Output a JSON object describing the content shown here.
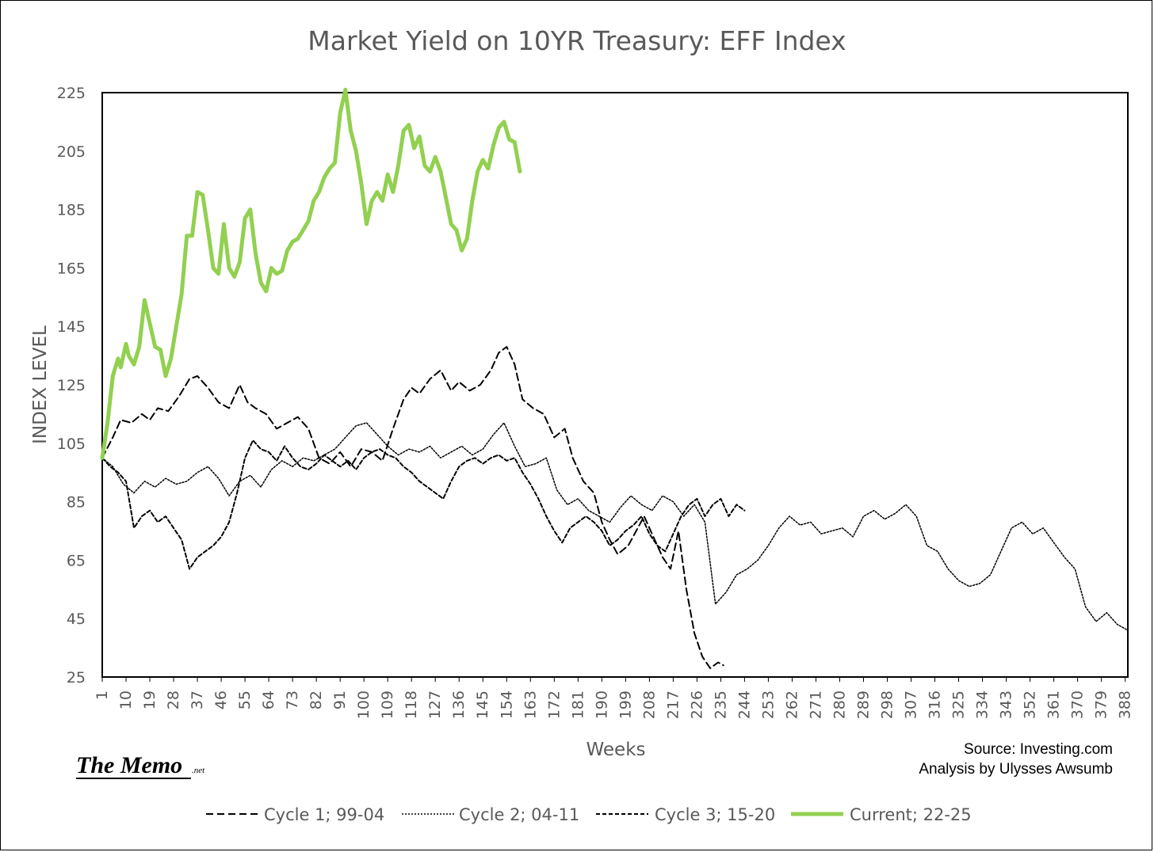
{
  "chart_data": {
    "type": "line",
    "title": "Market Yield on 10YR Treasury: EFF Index",
    "xlabel": "Weeks",
    "ylabel": "INDEX LEVEL",
    "ylim": [
      25,
      225
    ],
    "yticks": [
      25,
      45,
      65,
      85,
      105,
      125,
      145,
      165,
      185,
      205,
      225
    ],
    "xlim": [
      1,
      389
    ],
    "xticks": [
      1,
      10,
      19,
      28,
      37,
      46,
      55,
      64,
      73,
      82,
      91,
      100,
      109,
      118,
      127,
      136,
      145,
      154,
      163,
      172,
      181,
      190,
      199,
      208,
      217,
      226,
      235,
      244,
      253,
      262,
      271,
      280,
      289,
      298,
      307,
      316,
      325,
      334,
      343,
      352,
      361,
      370,
      379,
      388
    ],
    "grid": false,
    "legend_position": "bottom",
    "series": [
      {
        "name": "Cycle 1; 99-04",
        "style": "dash",
        "color": "#000000",
        "x": [
          1,
          5,
          8,
          12,
          16,
          19,
          22,
          26,
          30,
          34,
          37,
          41,
          45,
          49,
          53,
          56,
          59,
          63,
          67,
          71,
          75,
          79,
          83,
          87,
          91,
          95,
          99,
          103,
          107,
          111,
          115,
          118,
          121,
          125,
          129,
          133,
          136,
          140,
          144,
          148,
          151,
          154,
          157,
          160,
          164,
          168,
          172,
          176,
          179,
          183,
          187,
          190,
          193,
          196,
          200,
          203,
          206,
          210,
          213,
          216,
          219,
          222,
          225,
          228,
          231,
          234,
          236
        ],
        "values": [
          100,
          107,
          113,
          112,
          115,
          113,
          117,
          116,
          121,
          127,
          128,
          124,
          119,
          117,
          125,
          119,
          117,
          115,
          110,
          112,
          114,
          110,
          100,
          98,
          102,
          97,
          103,
          102,
          99,
          110,
          120,
          124,
          122,
          127,
          130,
          123,
          126,
          123,
          125,
          130,
          136,
          138,
          132,
          120,
          117,
          115,
          107,
          110,
          100,
          92,
          88,
          78,
          72,
          67,
          70,
          75,
          80,
          72,
          66,
          62,
          75,
          55,
          40,
          32,
          28,
          30,
          29
        ]
      },
      {
        "name": "Cycle 2; 04-11",
        "style": "dot",
        "color": "#000000",
        "x": [
          1,
          5,
          9,
          13,
          17,
          21,
          25,
          29,
          33,
          37,
          41,
          45,
          49,
          53,
          57,
          61,
          65,
          69,
          73,
          77,
          81,
          85,
          89,
          93,
          97,
          101,
          105,
          109,
          113,
          117,
          121,
          125,
          129,
          133,
          137,
          141,
          145,
          149,
          153,
          157,
          161,
          165,
          169,
          173,
          177,
          181,
          185,
          189,
          193,
          197,
          201,
          205,
          209,
          213,
          217,
          221,
          225,
          229,
          233,
          237,
          241,
          245,
          249,
          253,
          257,
          261,
          265,
          269,
          273,
          277,
          281,
          285,
          289,
          293,
          297,
          301,
          305,
          309,
          313,
          317,
          321,
          325,
          329,
          333,
          337,
          341,
          345,
          349,
          353,
          357,
          361,
          365,
          369,
          373,
          377,
          381,
          385,
          389
        ],
        "values": [
          100,
          97,
          91,
          88,
          92,
          90,
          93,
          91,
          92,
          95,
          97,
          93,
          87,
          92,
          94,
          90,
          96,
          99,
          97,
          100,
          99,
          101,
          103,
          107,
          111,
          112,
          108,
          104,
          101,
          103,
          102,
          104,
          100,
          102,
          104,
          101,
          103,
          108,
          112,
          104,
          97,
          98,
          100,
          89,
          84,
          86,
          82,
          80,
          78,
          83,
          87,
          84,
          82,
          87,
          85,
          80,
          84,
          78,
          50,
          54,
          60,
          62,
          65,
          70,
          76,
          80,
          77,
          78,
          74,
          75,
          76,
          73,
          80,
          82,
          79,
          81,
          84,
          80,
          70,
          68,
          62,
          58,
          56,
          57,
          60,
          68,
          76,
          78,
          74,
          76,
          71,
          66,
          62,
          49,
          44,
          47,
          43,
          41
        ]
      },
      {
        "name": "Cycle 3; 15-20",
        "style": "dash-fine",
        "color": "#000000",
        "x": [
          1,
          4,
          7,
          10,
          13,
          16,
          19,
          22,
          25,
          28,
          31,
          34,
          37,
          40,
          43,
          46,
          49,
          52,
          55,
          58,
          61,
          64,
          67,
          70,
          73,
          76,
          79,
          82,
          85,
          88,
          91,
          94,
          97,
          100,
          103,
          106,
          109,
          112,
          115,
          118,
          121,
          124,
          127,
          130,
          133,
          136,
          139,
          142,
          145,
          148,
          151,
          154,
          157,
          160,
          163,
          166,
          169,
          172,
          175,
          178,
          181,
          184,
          187,
          190,
          193,
          196,
          199,
          202,
          205,
          208,
          211,
          214,
          217,
          220,
          223,
          226,
          229,
          232,
          235,
          238,
          241,
          244
        ],
        "values": [
          100,
          97,
          95,
          92,
          76,
          80,
          82,
          78,
          80,
          76,
          72,
          62,
          66,
          68,
          70,
          73,
          78,
          88,
          100,
          106,
          103,
          102,
          99,
          104,
          100,
          97,
          96,
          98,
          101,
          99,
          97,
          99,
          96,
          100,
          102,
          103,
          101,
          100,
          97,
          95,
          92,
          90,
          88,
          86,
          92,
          97,
          99,
          100,
          98,
          100,
          101,
          99,
          100,
          95,
          91,
          86,
          80,
          75,
          71,
          76,
          78,
          80,
          78,
          75,
          70,
          72,
          75,
          77,
          80,
          74,
          70,
          68,
          74,
          80,
          84,
          86,
          80,
          84,
          86,
          80,
          84,
          82
        ]
      },
      {
        "name": "Current; 22-25",
        "style": "solid",
        "color": "#92D050",
        "x": [
          1,
          3,
          5,
          7,
          8,
          10,
          11,
          13,
          15,
          17,
          19,
          21,
          23,
          25,
          27,
          29,
          31,
          33,
          35,
          37,
          39,
          41,
          43,
          45,
          47,
          49,
          51,
          53,
          55,
          57,
          59,
          61,
          63,
          65,
          67,
          69,
          71,
          73,
          75,
          77,
          79,
          81,
          83,
          85,
          87,
          89,
          91,
          93,
          95,
          97,
          99,
          101,
          103,
          105,
          107,
          109,
          111,
          113,
          115,
          117,
          119,
          121,
          123,
          125,
          127,
          129,
          131,
          133,
          135,
          137,
          139,
          141,
          143,
          145,
          147,
          149,
          151,
          153,
          155,
          157,
          159
        ],
        "values": [
          100,
          112,
          128,
          134,
          131,
          139,
          135,
          132,
          138,
          154,
          146,
          138,
          137,
          128,
          134,
          145,
          156,
          176,
          176,
          191,
          190,
          178,
          165,
          163,
          180,
          165,
          162,
          167,
          182,
          185,
          170,
          160,
          157,
          165,
          163,
          164,
          171,
          174,
          175,
          178,
          181,
          188,
          191,
          196,
          199,
          201,
          218,
          226,
          212,
          205,
          194,
          180,
          188,
          191,
          188,
          197,
          191,
          200,
          212,
          214,
          206,
          210,
          200,
          198,
          203,
          198,
          189,
          180,
          178,
          171,
          175,
          188,
          198,
          202,
          199,
          207,
          213,
          215,
          209,
          208,
          198
        ]
      }
    ]
  },
  "source": {
    "line1": "Source: Investing.com",
    "line2": "Analysis by Ulysses Awsumb"
  },
  "logo": {
    "main": "The Memo",
    "suffix": ".net"
  }
}
